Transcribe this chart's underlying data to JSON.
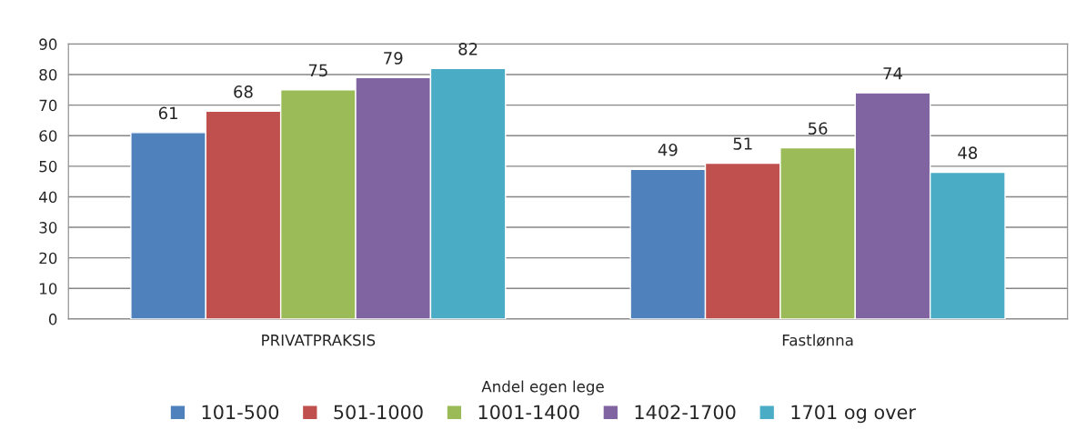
{
  "chart_data": {
    "type": "bar",
    "categories": [
      "PRIVATPRAKSIS",
      "Fastlønna"
    ],
    "series": [
      {
        "name": "101-500",
        "color": "#4f81bd",
        "values": [
          61,
          49
        ]
      },
      {
        "name": "501-1000",
        "color": "#c0504d",
        "values": [
          68,
          51
        ]
      },
      {
        "name": "1001-1400",
        "color": "#9bbb59",
        "values": [
          75,
          56
        ]
      },
      {
        "name": "1402-1700",
        "color": "#8064a2",
        "values": [
          79,
          74
        ]
      },
      {
        "name": "1701 og over",
        "color": "#4bacc6",
        "values": [
          82,
          48
        ]
      }
    ],
    "legend_title": "Andel egen lege",
    "ylim": [
      0,
      90
    ],
    "yticks": [
      0,
      10,
      20,
      30,
      40,
      50,
      60,
      70,
      80,
      90
    ],
    "grid": "y",
    "legend": "bottom",
    "data_labels": true
  }
}
